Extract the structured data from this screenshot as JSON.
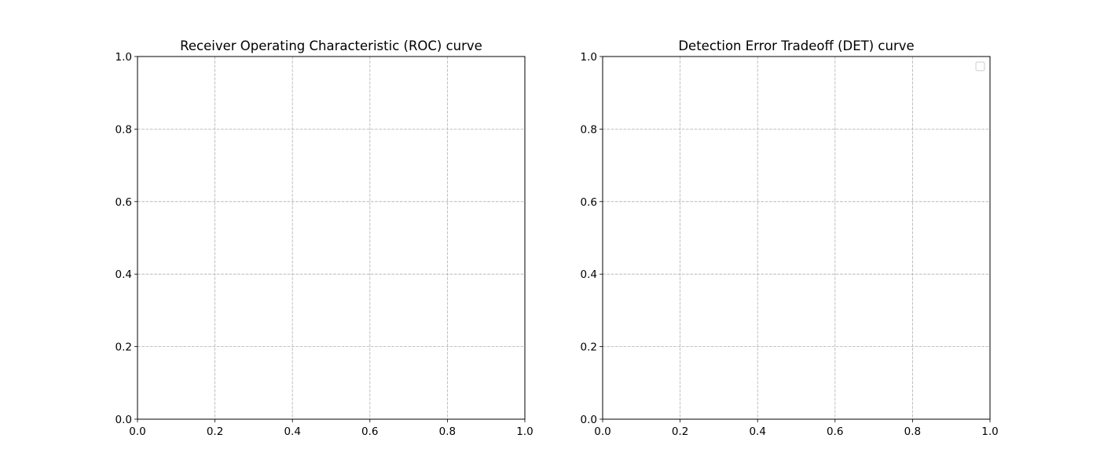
{
  "colors": {
    "background": "#ffffff",
    "axis": "#000000",
    "grid": "#b0b0b0",
    "legend_border": "#cccccc"
  },
  "chart_data": [
    {
      "type": "line",
      "title": "Receiver Operating Characteristic (ROC) curve",
      "xlabel": "",
      "ylabel": "",
      "xlim": [
        0.0,
        1.0
      ],
      "ylim": [
        0.0,
        1.0
      ],
      "xticks": [
        "0.0",
        "0.2",
        "0.4",
        "0.6",
        "0.8",
        "1.0"
      ],
      "yticks": [
        "0.0",
        "0.2",
        "0.4",
        "0.6",
        "0.8",
        "1.0"
      ],
      "grid": true,
      "grid_style": "dashed",
      "series": [],
      "legend": null
    },
    {
      "type": "line",
      "title": "Detection Error Tradeoff (DET) curve",
      "xlabel": "",
      "ylabel": "",
      "xlim": [
        0.0,
        1.0
      ],
      "ylim": [
        0.0,
        1.0
      ],
      "xticks": [
        "0.0",
        "0.2",
        "0.4",
        "0.6",
        "0.8",
        "1.0"
      ],
      "yticks": [
        "0.0",
        "0.2",
        "0.4",
        "0.6",
        "0.8",
        "1.0"
      ],
      "grid": true,
      "grid_style": "dashed",
      "series": [],
      "legend": {
        "placement": "top-right",
        "entries": []
      }
    }
  ]
}
